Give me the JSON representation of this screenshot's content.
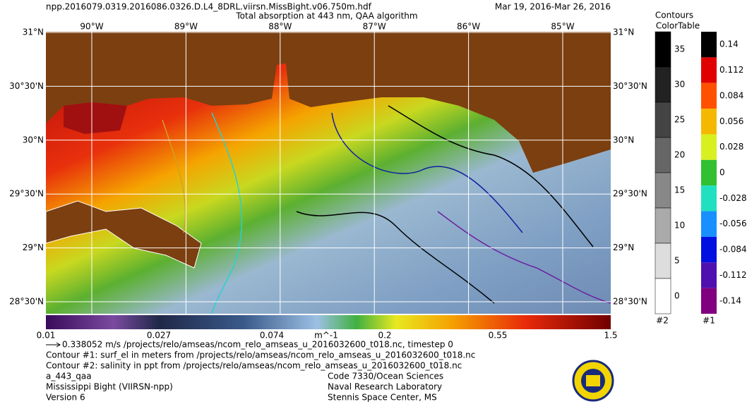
{
  "header": {
    "filename": "npp.2016079.0319.2016086.0326.D.L4_8DRL.viirsn.MissBight.v06.750m.hdf",
    "subtitle": "Total absorption at 443 nm, QAA algorithm",
    "date_range": "Mar 19, 2016-Mar 26, 2016"
  },
  "map": {
    "lon_labels": [
      "90°W",
      "89°W",
      "88°W",
      "87°W",
      "86°W",
      "85°W"
    ],
    "lat_labels": [
      "31°N",
      "30°30'N",
      "30°N",
      "29°30'N",
      "29°N",
      "28°30'N"
    ]
  },
  "colorbar": {
    "labels": [
      "0.01",
      "0.027",
      "0.074",
      "m^-1",
      "0.2",
      "0.55",
      "1.5"
    ]
  },
  "contours_legend": {
    "title": "Contours",
    "subtitle": "ColorTable",
    "bar2": {
      "labels": [
        "35",
        "30",
        "25",
        "20",
        "15",
        "10",
        "5",
        "0"
      ],
      "footer": "#2"
    },
    "bar1": {
      "labels": [
        "0.14",
        "0.112",
        "0.084",
        "0.056",
        "0.028",
        "0",
        "-0.028",
        "-0.056",
        "-0.084",
        "-0.112",
        "-0.14"
      ],
      "footer": "#1"
    }
  },
  "footer": {
    "vector_line": "0.338052 m/s /projects/relo/amseas/ncom_relo_amseas_u_2016032600_t018.nc, timestep 0",
    "contour1": "Contour #1: surf_el in meters from /projects/relo/amseas/ncom_relo_amseas_u_2016032600_t018.nc",
    "contour2": "Contour #2: salinity in ppt from /projects/relo/amseas/ncom_relo_amseas_u_2016032600_t018.nc",
    "left": [
      "a_443_qaa",
      "Mississippi Bight (VIIRSN-npp)",
      "Version 6"
    ],
    "right": [
      "Code 7330/Ocean Sciences",
      "Naval Research Laboratory",
      "Stennis Space Center, MS"
    ]
  }
}
